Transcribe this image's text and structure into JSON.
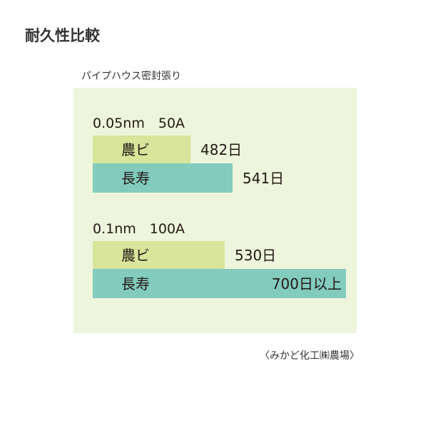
{
  "header": {
    "title": "耐久性比較",
    "subtitle": "パイプハウス密封張り"
  },
  "colors": {
    "panel": "#edf5dc",
    "nobi": "#d8e59b",
    "choju": "#82cbbd"
  },
  "chart_data": {
    "type": "bar",
    "orientation": "horizontal",
    "title": "パイプハウス密封張り",
    "unit": "日",
    "groups": [
      {
        "label": "0.05nm　50A",
        "bars": [
          {
            "name": "農ビ",
            "value": 482,
            "value_label": "482日"
          },
          {
            "name": "長寿",
            "value": 541,
            "value_label": "541日"
          }
        ]
      },
      {
        "label": "0.1nm　100A",
        "bars": [
          {
            "name": "農ビ",
            "value": 530,
            "value_label": "530日"
          },
          {
            "name": "長寿",
            "value": 700,
            "value_label": "700日以上"
          }
        ]
      }
    ]
  },
  "footer": {
    "source": "〈みかど化工㈱農場〉"
  }
}
